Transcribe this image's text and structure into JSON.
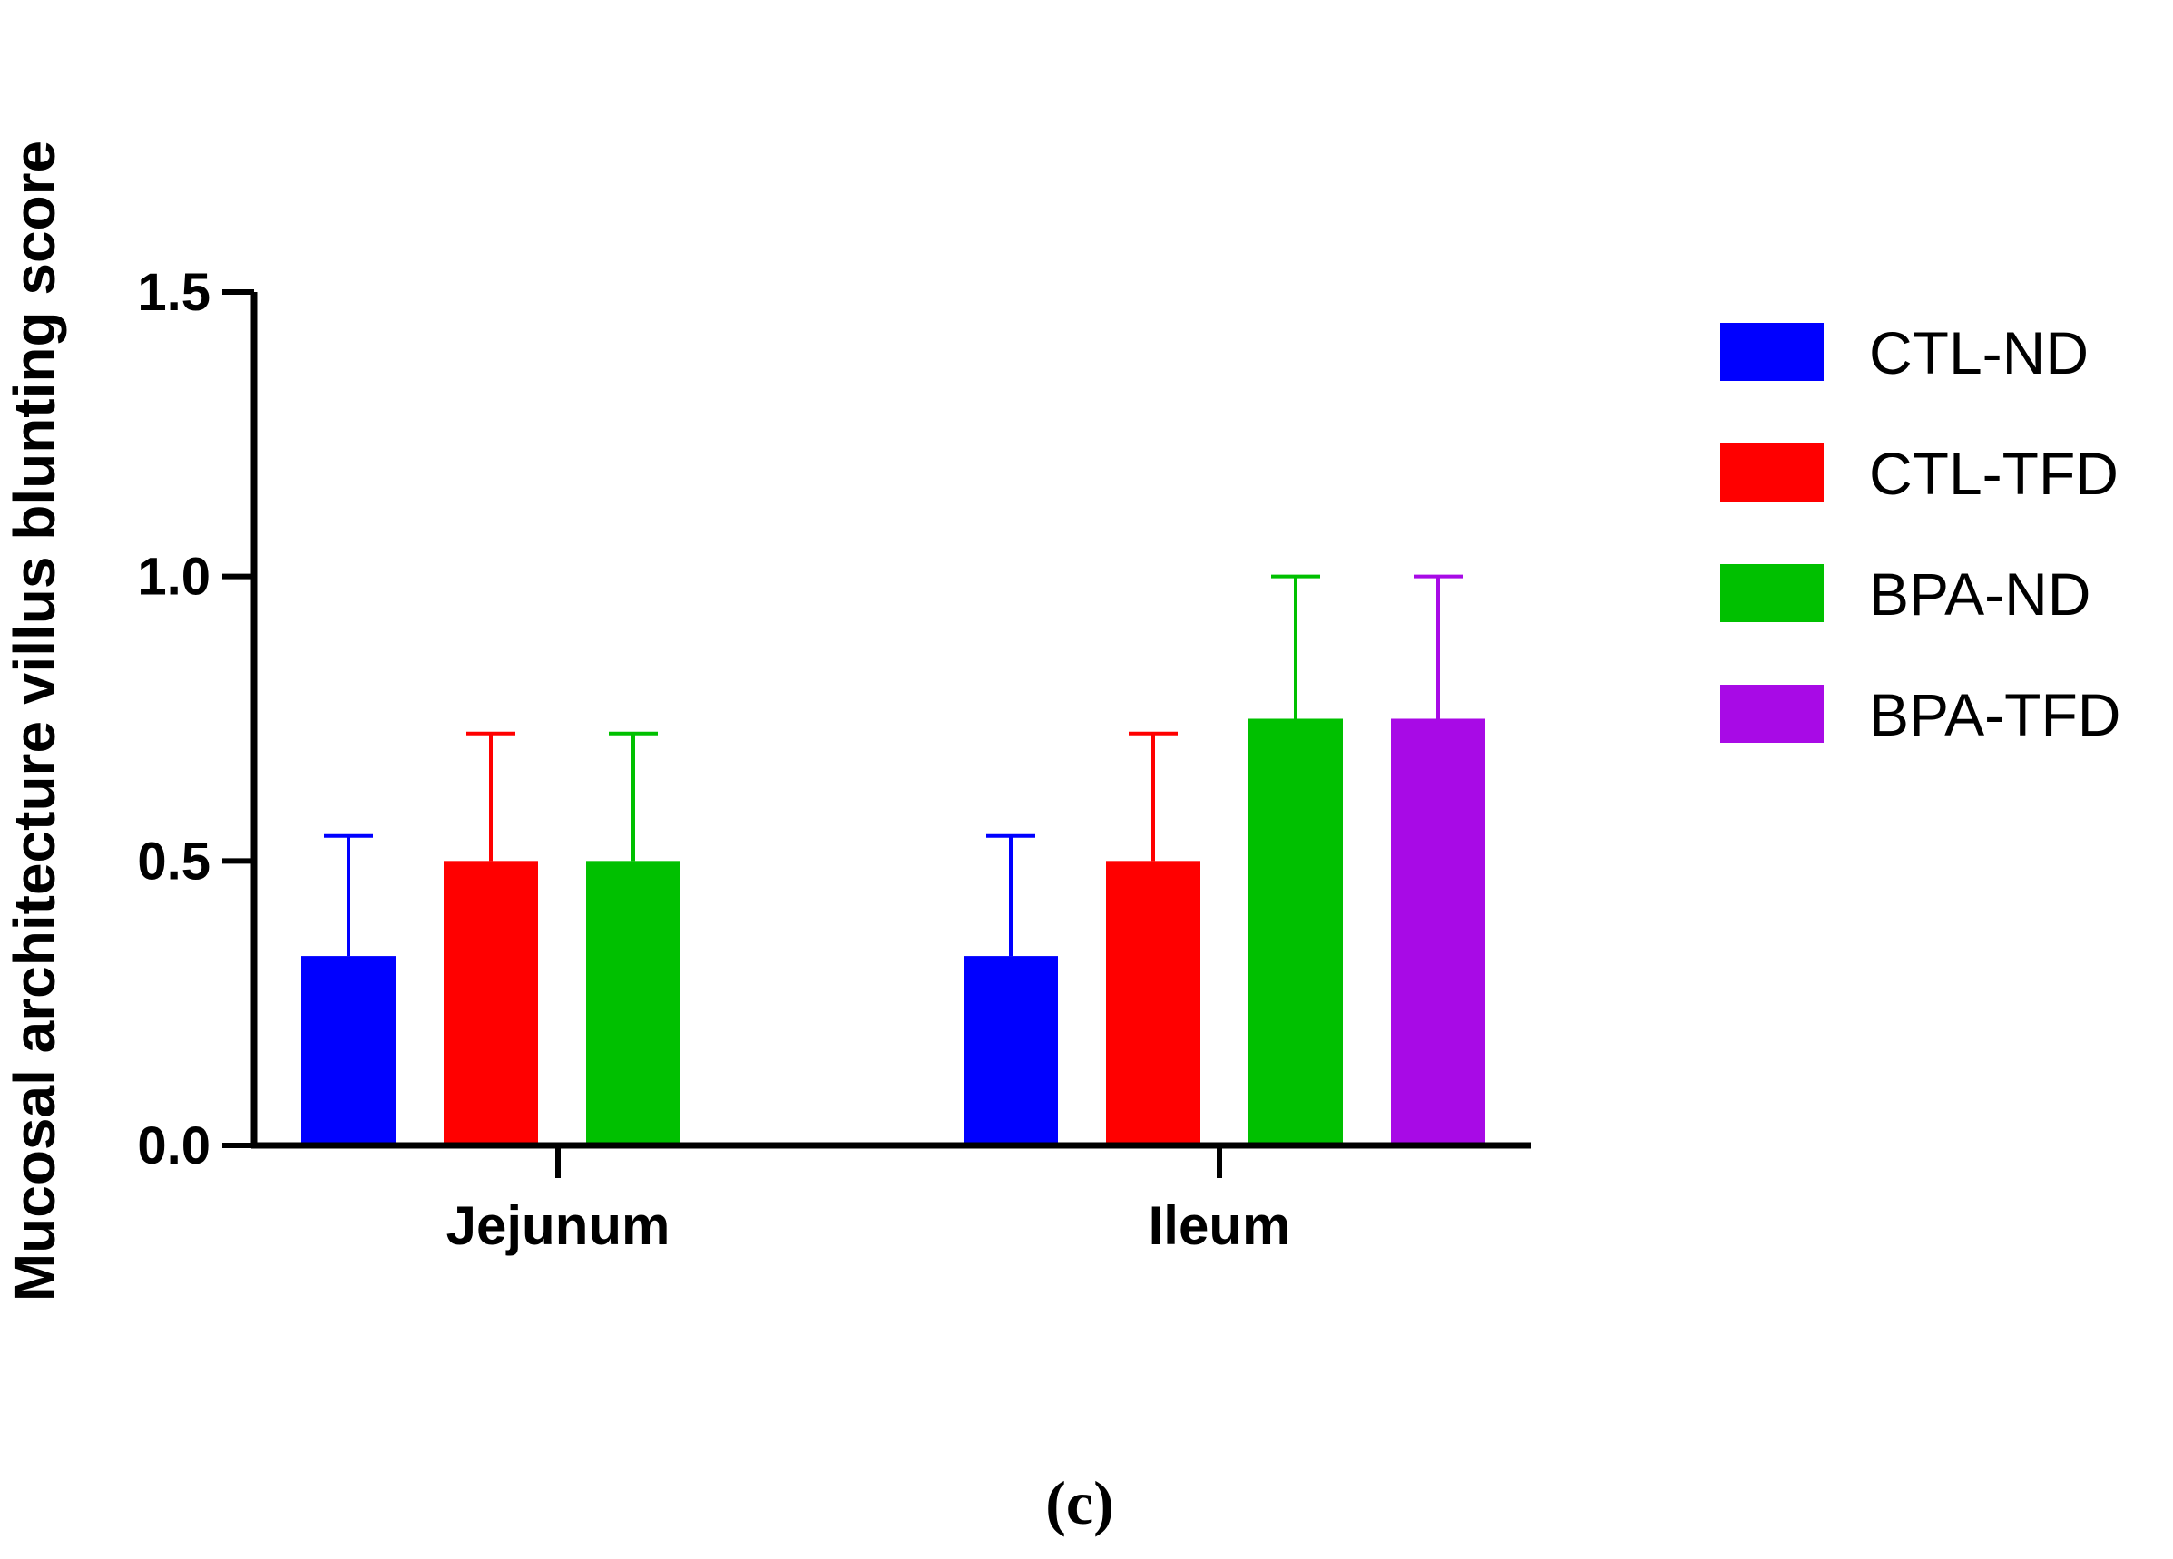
{
  "chart_data": {
    "type": "bar",
    "ylabel": "Mucosal architecture villus blunting score",
    "xlabel": "",
    "ylim": [
      0,
      1.5
    ],
    "yticks": [
      "0.0",
      "0.5",
      "1.0",
      "1.5"
    ],
    "ytick_values": [
      0,
      0.5,
      1.0,
      1.5
    ],
    "categories": [
      "Jejunum",
      "Ileum"
    ],
    "legend_position": "right",
    "grid": false,
    "error_bars": "positive only",
    "series": [
      {
        "name": "CTL-ND",
        "color": "#0000ff",
        "values": [
          0.333,
          0.333
        ],
        "errors": [
          0.211,
          0.211
        ]
      },
      {
        "name": "CTL-TFD",
        "color": "#ff0000",
        "values": [
          0.5,
          0.5
        ],
        "errors": [
          0.224,
          0.224
        ]
      },
      {
        "name": "BPA-ND",
        "color": "#00c000",
        "values": [
          0.5,
          0.75
        ],
        "errors": [
          0.224,
          0.25
        ]
      },
      {
        "name": "BPA-TFD",
        "color": "#a80ae6",
        "values": [
          null,
          0.75
        ],
        "errors": [
          null,
          0.25
        ]
      }
    ]
  },
  "panel_label": "(c)"
}
